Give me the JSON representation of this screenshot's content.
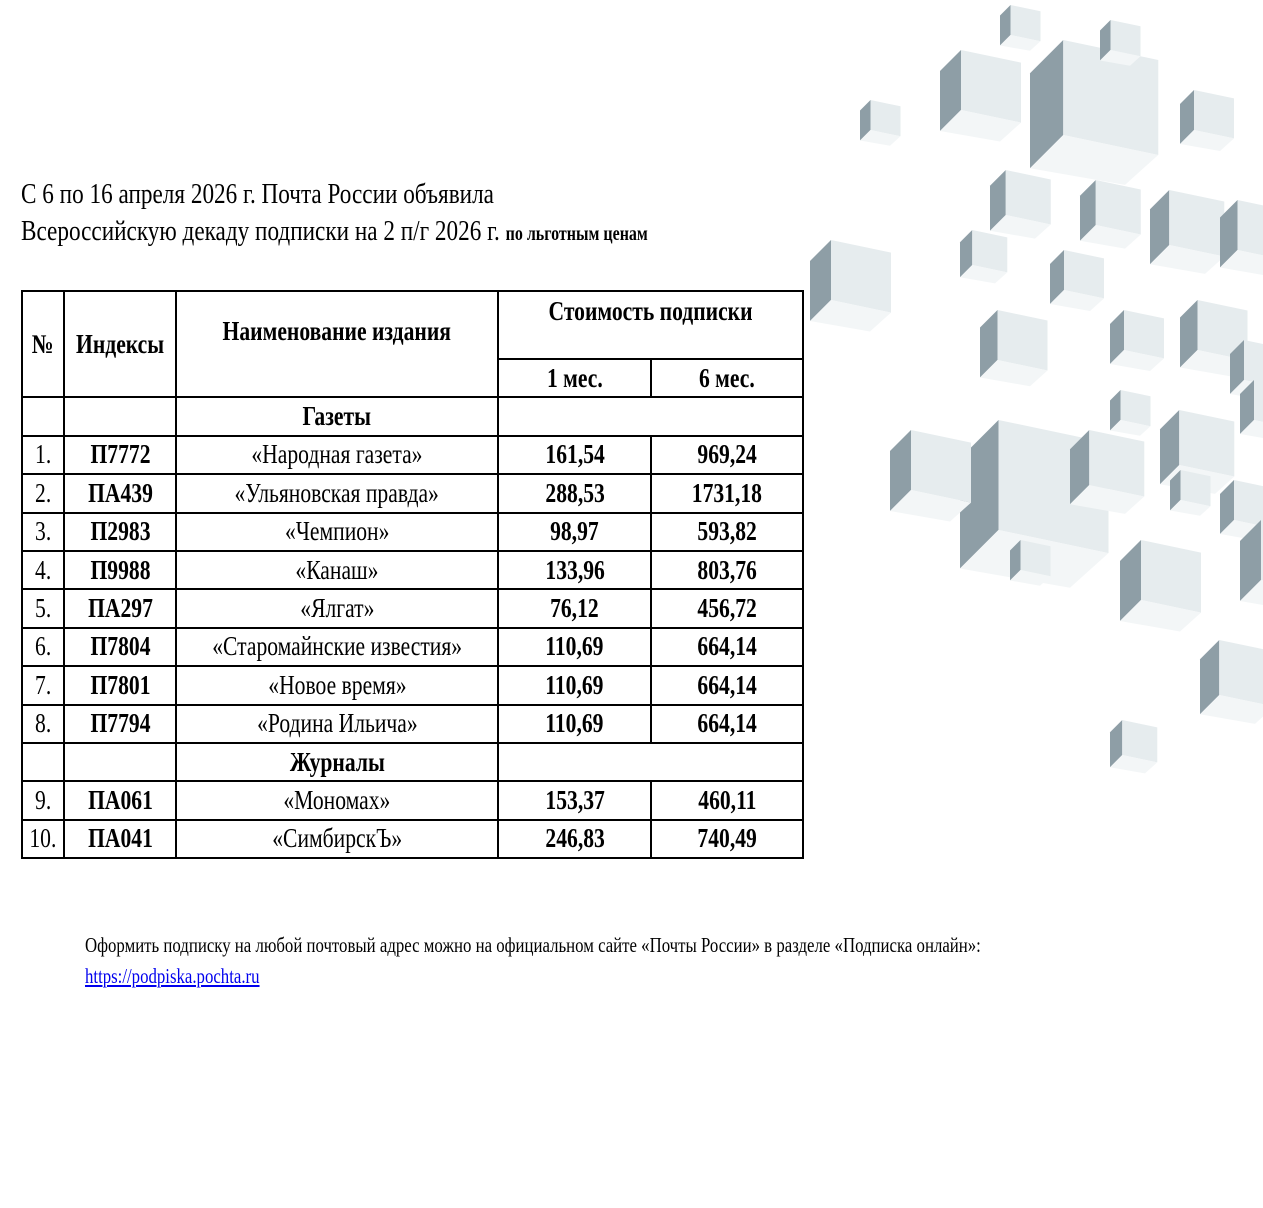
{
  "title": {
    "line1": "С 6 по 16 апреля 2026 г. Почта России объявила",
    "line2": "Всероссийскую декаду подписки на 2 п/г 2026 г.",
    "line2_small": "по льготным ценам"
  },
  "table": {
    "headers": {
      "num": "№",
      "index": "Индексы",
      "name": "Наименование издания",
      "cost": "Стоимость подписки",
      "m1": "1 мес.",
      "m6": "6 мес."
    },
    "sections": [
      {
        "label": "Газеты",
        "rows": [
          {
            "num": "1.",
            "index": "П7772",
            "name": "«Народная газета»",
            "m1": "161,54",
            "m6": "969,24"
          },
          {
            "num": "2.",
            "index": "ПА439",
            "name": "«Ульяновская правда»",
            "m1": "288,53",
            "m6": "1731,18"
          },
          {
            "num": "3.",
            "index": "П2983",
            "name": "«Чемпион»",
            "m1": "98,97",
            "m6": "593,82"
          },
          {
            "num": "4.",
            "index": "П9988",
            "name": "«Канаш»",
            "m1": "133,96",
            "m6": "803,76"
          },
          {
            "num": "5.",
            "index": "ПА297",
            "name": "«Ялгат»",
            "m1": "76,12",
            "m6": "456,72"
          },
          {
            "num": "6.",
            "index": "П7804",
            "name": "«Старомайнские известия»",
            "m1": "110,69",
            "m6": "664,14"
          },
          {
            "num": "7.",
            "index": "П7801",
            "name": "«Новое время»",
            "m1": "110,69",
            "m6": "664,14"
          },
          {
            "num": "8.",
            "index": "П7794",
            "name": "«Родина Ильича»",
            "m1": "110,69",
            "m6": "664,14"
          }
        ]
      },
      {
        "label": "Журналы",
        "rows": [
          {
            "num": "9.",
            "index": "ПА061",
            "name": "«Мономах»",
            "m1": "153,37",
            "m6": "460,11"
          },
          {
            "num": "10.",
            "index": "ПА041",
            "name": "«СимбирскЪ»",
            "m1": "246,83",
            "m6": "740,49"
          }
        ]
      }
    ]
  },
  "footer": {
    "text": "Оформить подписку на любой почтовый адрес можно на официальном сайте «Почты России» в разделе «Подписка онлайн»:",
    "link": "https://podpiska.pochta.ru"
  },
  "colors": {
    "cube_dark": "#8e9ea6",
    "cube_light": "#e6ecee",
    "link": "#0000ee"
  }
}
